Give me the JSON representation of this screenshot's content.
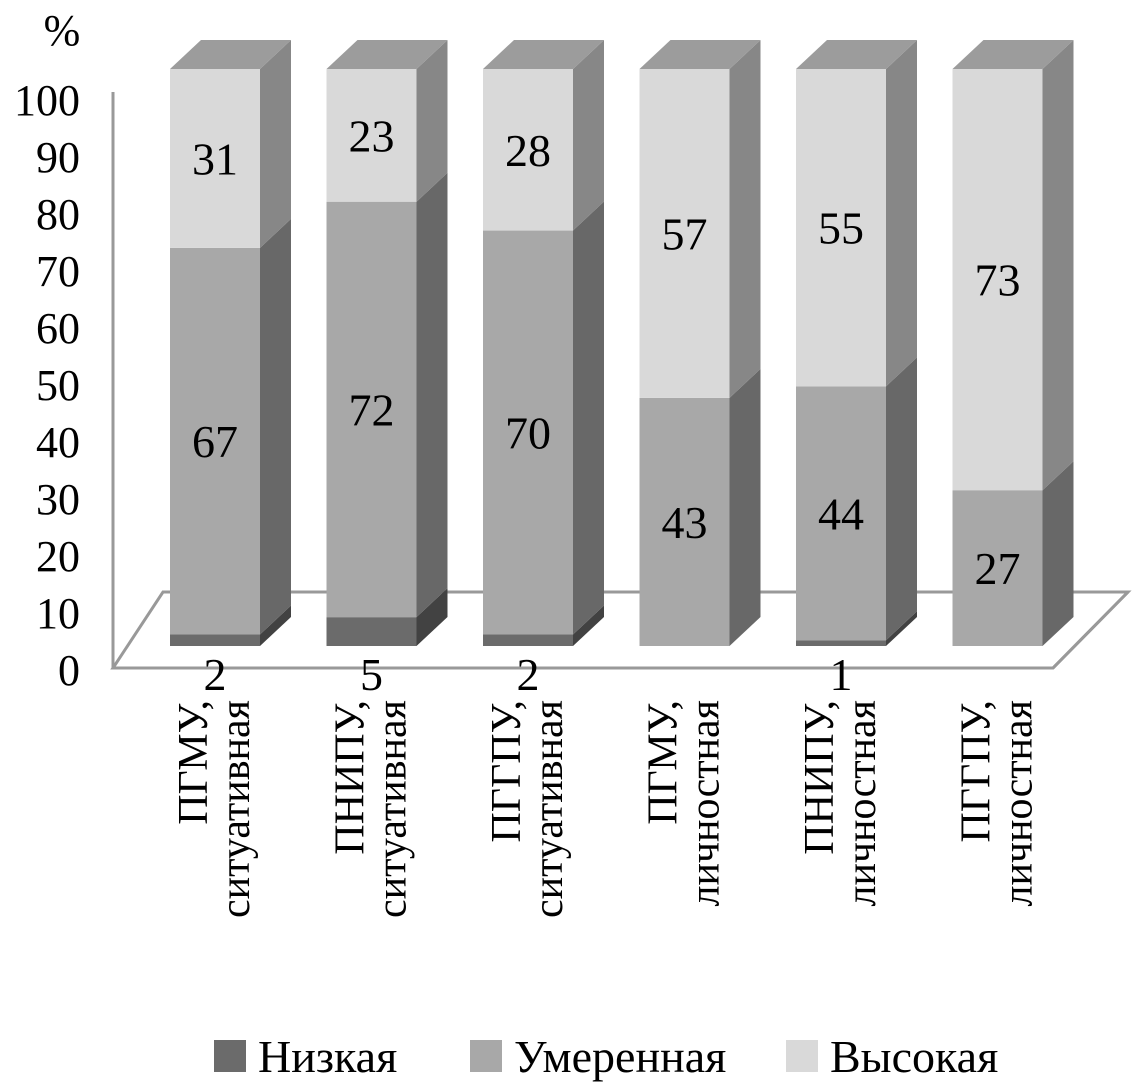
{
  "chart_data": {
    "type": "bar",
    "stacked": true,
    "style": "3d",
    "y_unit_label": "%",
    "ylim": [
      0,
      100
    ],
    "yticks": [
      0,
      10,
      20,
      30,
      40,
      50,
      60,
      70,
      80,
      90,
      100
    ],
    "grid": false,
    "legend_position": "bottom",
    "categories": [
      {
        "line1": "ПГМУ,",
        "line2": "ситуативная"
      },
      {
        "line1": "ПНИПУ,",
        "line2": "ситуативная"
      },
      {
        "line1": "ПГГПУ,",
        "line2": "ситуативная"
      },
      {
        "line1": "ПГМУ,",
        "line2": "личностная"
      },
      {
        "line1": "ПНИПУ,",
        "line2": "личностная"
      },
      {
        "line1": "ПГГПУ,",
        "line2": "личностная"
      }
    ],
    "series": [
      {
        "name": "Низкая",
        "color": "#6b6b6b",
        "values": [
          2,
          5,
          2,
          0,
          1,
          0
        ],
        "labels": [
          "2",
          "5",
          "2",
          "",
          "1",
          ""
        ]
      },
      {
        "name": "Умеренная",
        "color": "#a8a8a8",
        "values": [
          67,
          72,
          70,
          43,
          44,
          27
        ],
        "labels": [
          "67",
          "72",
          "70",
          "43",
          "44",
          "27"
        ]
      },
      {
        "name": "Высокая",
        "color": "#d9d9d9",
        "values": [
          31,
          23,
          28,
          57,
          55,
          73
        ],
        "labels": [
          "31",
          "23",
          "28",
          "57",
          "55",
          "73"
        ]
      }
    ]
  }
}
